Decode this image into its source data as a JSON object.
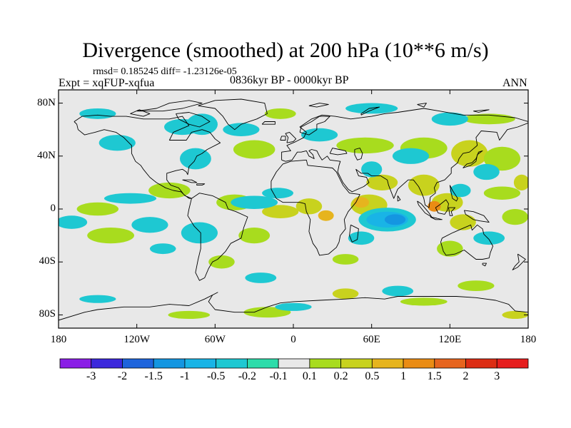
{
  "header": {
    "title": "Divergence (smoothed) at 200 hPa (10**6 m/s)",
    "stats": "rmsd= 0.185245 diff= -1.23126e-05",
    "experiment": "Expt = xqFUP-xqfua",
    "period": "0836kyr BP - 0000kyr BP",
    "season": "ANN"
  },
  "map": {
    "projection": "cylindrical equidistant",
    "lon_range": [
      -180,
      180
    ],
    "lat_range": [
      -90,
      90
    ],
    "y_ticks": [
      {
        "lat": 80,
        "label": "80N"
      },
      {
        "lat": 40,
        "label": "40N"
      },
      {
        "lat": 0,
        "label": "0"
      },
      {
        "lat": -40,
        "label": "40S"
      },
      {
        "lat": -80,
        "label": "80S"
      }
    ],
    "x_ticks": [
      {
        "lon": -180,
        "label": "180"
      },
      {
        "lon": -120,
        "label": "120W"
      },
      {
        "lon": -60,
        "label": "60W"
      },
      {
        "lon": 0,
        "label": "0"
      },
      {
        "lon": 60,
        "label": "60E"
      },
      {
        "lon": 120,
        "label": "120E"
      },
      {
        "lon": 180,
        "label": "180"
      }
    ],
    "ocean_color": "#e8e8e8",
    "coast_color": "#000000"
  },
  "colorbar": {
    "levels": [
      "-3",
      "-2",
      "-1.5",
      "-1",
      "-0.5",
      "-0.2",
      "-0.1",
      "0.1",
      "0.2",
      "0.5",
      "1",
      "1.5",
      "2",
      "3"
    ],
    "colors": [
      "#8a1ee6",
      "#3c28dc",
      "#1e64dc",
      "#1496e1",
      "#19b4e6",
      "#1ec8d2",
      "#2ddcaa",
      "#e8e8e8",
      "#a8dc1e",
      "#c8d21e",
      "#e6b41e",
      "#ea8c14",
      "#e6641e",
      "#dc2d14",
      "#e61e1e"
    ]
  },
  "anomalies": [
    {
      "lon": -10,
      "lat": -2,
      "rx": 14,
      "ry": 5,
      "v": 0.5
    },
    {
      "lon": 12,
      "lat": 2,
      "rx": 10,
      "ry": 6,
      "v": 0.5
    },
    {
      "lon": 25,
      "lat": -5,
      "rx": 6,
      "ry": 4,
      "v": 1
    },
    {
      "lon": -30,
      "lat": -20,
      "rx": 12,
      "ry": 6,
      "v": 0.2
    },
    {
      "lon": -45,
      "lat": 5,
      "rx": 14,
      "ry": 6,
      "v": 0.2
    },
    {
      "lon": -150,
      "lat": 0,
      "rx": 16,
      "ry": 5,
      "v": 0.2
    },
    {
      "lon": -140,
      "lat": -20,
      "rx": 18,
      "ry": 6,
      "v": 0.2
    },
    {
      "lon": -95,
      "lat": 14,
      "rx": 16,
      "ry": 6,
      "v": 0.2
    },
    {
      "lon": -30,
      "lat": 45,
      "rx": 16,
      "ry": 7,
      "v": 0.2
    },
    {
      "lon": -10,
      "lat": 72,
      "rx": 12,
      "ry": 4,
      "v": 0.2
    },
    {
      "lon": 55,
      "lat": 48,
      "rx": 22,
      "ry": 6,
      "v": 0.2
    },
    {
      "lon": 100,
      "lat": 46,
      "rx": 18,
      "ry": 8,
      "v": 0.2
    },
    {
      "lon": 135,
      "lat": 42,
      "rx": 14,
      "ry": 10,
      "v": 0.5
    },
    {
      "lon": 160,
      "lat": 38,
      "rx": 14,
      "ry": 9,
      "v": 0.2
    },
    {
      "lon": 150,
      "lat": 68,
      "rx": 20,
      "ry": 4,
      "v": 0.2
    },
    {
      "lon": 68,
      "lat": 20,
      "rx": 12,
      "ry": 6,
      "v": 0.5
    },
    {
      "lon": 58,
      "lat": 3,
      "rx": 14,
      "ry": 8,
      "v": 0.5
    },
    {
      "lon": 52,
      "lat": 5,
      "rx": 6,
      "ry": 4,
      "v": 1
    },
    {
      "lon": 100,
      "lat": 18,
      "rx": 12,
      "ry": 8,
      "v": 0.5
    },
    {
      "lon": 118,
      "lat": 5,
      "rx": 12,
      "ry": 7,
      "v": 0.5
    },
    {
      "lon": 108,
      "lat": 2,
      "rx": 5,
      "ry": 4,
      "v": 1.5
    },
    {
      "lon": 130,
      "lat": -10,
      "rx": 10,
      "ry": 6,
      "v": 0.5
    },
    {
      "lon": 160,
      "lat": 12,
      "rx": 14,
      "ry": 5,
      "v": 0.2
    },
    {
      "lon": 170,
      "lat": -6,
      "rx": 10,
      "ry": 6,
      "v": 0.2
    },
    {
      "lon": 120,
      "lat": -30,
      "rx": 10,
      "ry": 6,
      "v": 0.2
    },
    {
      "lon": -55,
      "lat": -40,
      "rx": 10,
      "ry": 5,
      "v": 0.2
    },
    {
      "lon": 40,
      "lat": -38,
      "rx": 10,
      "ry": 4,
      "v": 0.2
    },
    {
      "lon": 140,
      "lat": -58,
      "rx": 14,
      "ry": 4,
      "v": 0.2
    },
    {
      "lon": 40,
      "lat": -64,
      "rx": 10,
      "ry": 4,
      "v": 0.5
    },
    {
      "lon": 100,
      "lat": -70,
      "rx": 18,
      "ry": 3,
      "v": 0.2
    },
    {
      "lon": -20,
      "lat": -78,
      "rx": 18,
      "ry": 4,
      "v": 0.2
    },
    {
      "lon": -80,
      "lat": -80,
      "rx": 16,
      "ry": 3,
      "v": 0.2
    },
    {
      "lon": 170,
      "lat": -80,
      "rx": 10,
      "ry": 3,
      "v": 0.5
    },
    {
      "lon": 175,
      "lat": 20,
      "rx": 6,
      "ry": 6,
      "v": 0.5
    },
    {
      "lon": 72,
      "lat": -8,
      "rx": 22,
      "ry": 9,
      "v": -0.2
    },
    {
      "lon": 72,
      "lat": -8,
      "rx": 16,
      "ry": 6,
      "v": -0.5
    },
    {
      "lon": 78,
      "lat": -8,
      "rx": 8,
      "ry": 4,
      "v": -1
    },
    {
      "lon": 52,
      "lat": -22,
      "rx": 10,
      "ry": 5,
      "v": -0.2
    },
    {
      "lon": -30,
      "lat": 5,
      "rx": 18,
      "ry": 5,
      "v": -0.2
    },
    {
      "lon": -12,
      "lat": 12,
      "rx": 12,
      "ry": 4,
      "v": -0.2
    },
    {
      "lon": -125,
      "lat": 8,
      "rx": 20,
      "ry": 4,
      "v": -0.2
    },
    {
      "lon": -170,
      "lat": -10,
      "rx": 12,
      "ry": 5,
      "v": -0.2
    },
    {
      "lon": -110,
      "lat": -12,
      "rx": 14,
      "ry": 6,
      "v": -0.2
    },
    {
      "lon": -72,
      "lat": -18,
      "rx": 14,
      "ry": 8,
      "v": -0.2
    },
    {
      "lon": -75,
      "lat": 38,
      "rx": 12,
      "ry": 8,
      "v": -0.2
    },
    {
      "lon": -135,
      "lat": 50,
      "rx": 14,
      "ry": 6,
      "v": -0.2
    },
    {
      "lon": -70,
      "lat": 64,
      "rx": 12,
      "ry": 8,
      "v": -0.2
    },
    {
      "lon": -85,
      "lat": 62,
      "rx": 14,
      "ry": 6,
      "v": -0.2
    },
    {
      "lon": -150,
      "lat": 72,
      "rx": 14,
      "ry": 4,
      "v": -0.2
    },
    {
      "lon": -40,
      "lat": 60,
      "rx": 14,
      "ry": 5,
      "v": -0.2
    },
    {
      "lon": 20,
      "lat": 56,
      "rx": 14,
      "ry": 5,
      "v": -0.2
    },
    {
      "lon": 60,
      "lat": 76,
      "rx": 20,
      "ry": 4,
      "v": -0.2
    },
    {
      "lon": 120,
      "lat": 68,
      "rx": 14,
      "ry": 5,
      "v": -0.2
    },
    {
      "lon": 148,
      "lat": 28,
      "rx": 10,
      "ry": 6,
      "v": -0.2
    },
    {
      "lon": 90,
      "lat": 40,
      "rx": 14,
      "ry": 6,
      "v": -0.2
    },
    {
      "lon": 128,
      "lat": 14,
      "rx": 8,
      "ry": 5,
      "v": -0.2
    },
    {
      "lon": 150,
      "lat": -22,
      "rx": 12,
      "ry": 5,
      "v": -0.2
    },
    {
      "lon": -25,
      "lat": -52,
      "rx": 12,
      "ry": 4,
      "v": -0.2
    },
    {
      "lon": 80,
      "lat": -62,
      "rx": 12,
      "ry": 4,
      "v": -0.2
    },
    {
      "lon": -150,
      "lat": -68,
      "rx": 14,
      "ry": 3,
      "v": -0.2
    },
    {
      "lon": -100,
      "lat": -30,
      "rx": 10,
      "ry": 4,
      "v": -0.2
    },
    {
      "lon": 0,
      "lat": -74,
      "rx": 14,
      "ry": 3,
      "v": -0.2
    },
    {
      "lon": 60,
      "lat": 30,
      "rx": 8,
      "ry": 6,
      "v": -0.2
    }
  ]
}
